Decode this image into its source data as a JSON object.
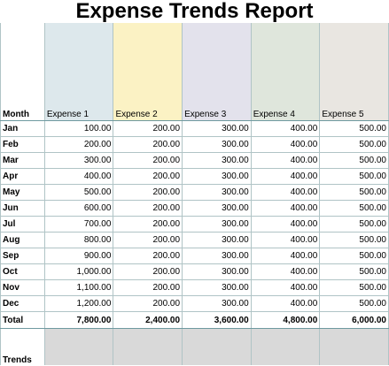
{
  "report": {
    "title": "Expense Trends Report"
  },
  "table": {
    "month_header": "Month",
    "columns": [
      {
        "name": "Expense 1",
        "color": "#dde8ec"
      },
      {
        "name": "Expense 2",
        "color": "#fbf2c4"
      },
      {
        "name": "Expense 3",
        "color": "#e3e2ec"
      },
      {
        "name": "Expense 4",
        "color": "#dfe6dc"
      },
      {
        "name": "Expense 5",
        "color": "#e9e6e1"
      }
    ],
    "rows": [
      {
        "month": "Jan",
        "values": [
          "100.00",
          "200.00",
          "300.00",
          "400.00",
          "500.00"
        ]
      },
      {
        "month": "Feb",
        "values": [
          "200.00",
          "200.00",
          "300.00",
          "400.00",
          "500.00"
        ]
      },
      {
        "month": "Mar",
        "values": [
          "300.00",
          "200.00",
          "300.00",
          "400.00",
          "500.00"
        ]
      },
      {
        "month": "Apr",
        "values": [
          "400.00",
          "200.00",
          "300.00",
          "400.00",
          "500.00"
        ]
      },
      {
        "month": "May",
        "values": [
          "500.00",
          "200.00",
          "300.00",
          "400.00",
          "500.00"
        ]
      },
      {
        "month": "Jun",
        "values": [
          "600.00",
          "200.00",
          "300.00",
          "400.00",
          "500.00"
        ]
      },
      {
        "month": "Jul",
        "values": [
          "700.00",
          "200.00",
          "300.00",
          "400.00",
          "500.00"
        ]
      },
      {
        "month": "Aug",
        "values": [
          "800.00",
          "200.00",
          "300.00",
          "400.00",
          "500.00"
        ]
      },
      {
        "month": "Sep",
        "values": [
          "900.00",
          "200.00",
          "300.00",
          "400.00",
          "500.00"
        ]
      },
      {
        "month": "Oct",
        "values": [
          "1,000.00",
          "200.00",
          "300.00",
          "400.00",
          "500.00"
        ]
      },
      {
        "month": "Nov",
        "values": [
          "1,100.00",
          "200.00",
          "300.00",
          "400.00",
          "500.00"
        ]
      },
      {
        "month": "Dec",
        "values": [
          "1,200.00",
          "200.00",
          "300.00",
          "400.00",
          "500.00"
        ]
      }
    ],
    "total_label": "Total",
    "totals": [
      "7,800.00",
      "2,400.00",
      "3,600.00",
      "4,800.00",
      "6,000.00"
    ],
    "trends_label": "Trends"
  }
}
